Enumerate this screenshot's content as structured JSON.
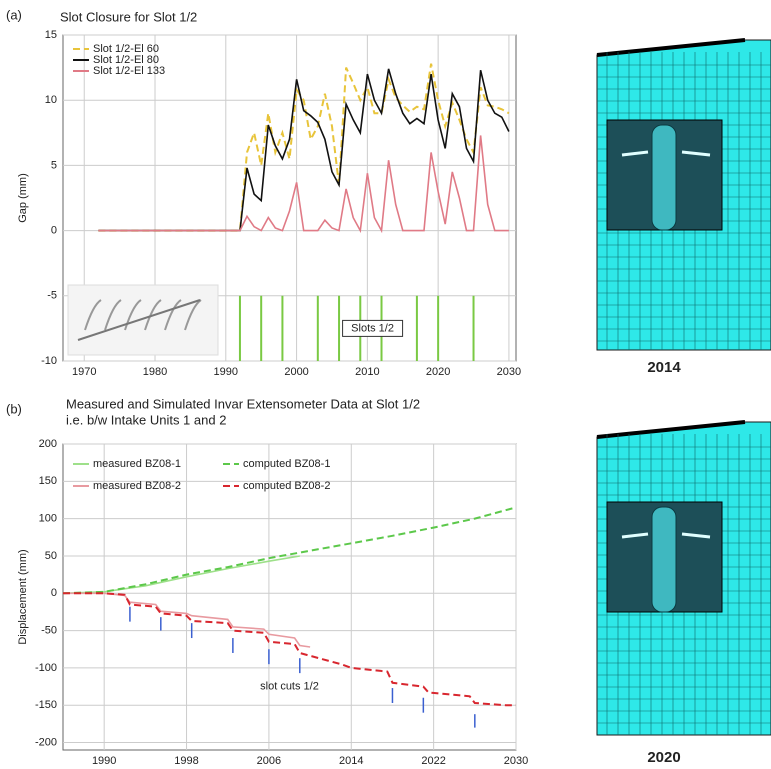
{
  "figure_labels": [
    "(a)",
    "(b)"
  ],
  "meshes": [
    {
      "label": "2014"
    },
    {
      "label": "2020"
    }
  ],
  "chart_data": [
    {
      "type": "line",
      "title": "Slot Closure for Slot 1/2",
      "y_label": "Gap (mm)",
      "x": [
        1972,
        1992,
        1993,
        1994,
        1995,
        1996,
        1997,
        1998,
        1999,
        2000,
        2001,
        2002,
        2003,
        2004,
        2005,
        2006,
        2007,
        2008,
        2009,
        2010,
        2011,
        2012,
        2013,
        2014,
        2015,
        2016,
        2017,
        2018,
        2019,
        2020,
        2021,
        2022,
        2023,
        2024,
        2025,
        2026,
        2027,
        2028,
        2029,
        2030
      ],
      "series": [
        {
          "name": "Slot 1/2-El 60",
          "color": "#e8c43a",
          "style": "dashed",
          "values": [
            0,
            0,
            6,
            7.5,
            5,
            9,
            6,
            7.5,
            5.5,
            10.8,
            10,
            7,
            8,
            10.5,
            8,
            3.5,
            12.5,
            11.3,
            10,
            11,
            9,
            9,
            11.6,
            10.2,
            9.6,
            9.1,
            9.5,
            9.3,
            12.8,
            10,
            8,
            9.8,
            8.5,
            7,
            6,
            11,
            9.6,
            9.5,
            9.3,
            9
          ]
        },
        {
          "name": "Slot 1/2-El 80",
          "color": "#111111",
          "style": "solid",
          "values": [
            0,
            0,
            4.8,
            2.8,
            2.3,
            8.1,
            6.5,
            5.5,
            7,
            11.6,
            9.2,
            8.8,
            8.3,
            7,
            4.5,
            3.5,
            9.7,
            8.5,
            7.5,
            12,
            10,
            9,
            12.4,
            10.5,
            9,
            8.2,
            8.6,
            8.2,
            12,
            8.5,
            6.3,
            10.5,
            9.5,
            6.3,
            5.3,
            12.3,
            10,
            9,
            8.7,
            7.6
          ]
        },
        {
          "name": "Slot 1/2-El 133",
          "color": "#e07a86",
          "style": "solid",
          "values": [
            0,
            0,
            1.1,
            0.3,
            0,
            1,
            0.2,
            0,
            1.5,
            3.7,
            0,
            0,
            0,
            0.8,
            0.2,
            0,
            3.2,
            1,
            0,
            4.4,
            1,
            0,
            5.4,
            2,
            0,
            0,
            0,
            0,
            6,
            3,
            0.5,
            4.5,
            2.5,
            0,
            0,
            7.3,
            2,
            0,
            0,
            0
          ]
        }
      ],
      "slot_cuts": {
        "x": [
          1992,
          1995,
          1998,
          2003,
          2006,
          2009,
          2012,
          2017,
          2020,
          2025
        ],
        "y_range": [
          -5,
          -10
        ],
        "color": "#7ac943",
        "label": "Slots 1/2"
      },
      "xlim": [
        1967,
        2031
      ],
      "xticks": [
        1970,
        1980,
        1990,
        2000,
        2010,
        2020,
        2030
      ],
      "ylim": [
        -10,
        15
      ],
      "yticks": [
        -10,
        -5,
        0,
        5,
        10,
        15
      ],
      "grid": true
    },
    {
      "type": "line",
      "title": "Measured and Simulated Invar Extensometer Data at Slot 1/2",
      "subtitle": "i.e. b/w Intake Units 1 and 2",
      "y_label": "Displacement (mm)",
      "series": [
        {
          "name": "measured BZ08-1",
          "color": "#9ee08a",
          "style": "solid",
          "x": [
            1986,
            1990,
            1994,
            1998,
            2002,
            2006,
            2009
          ],
          "values": [
            0,
            2,
            10,
            22,
            33,
            43,
            50
          ]
        },
        {
          "name": "computed BZ08-1",
          "color": "#5cc84a",
          "style": "dashed",
          "x": [
            1986,
            1990,
            1994,
            1998,
            2002,
            2006,
            2010,
            2014,
            2018,
            2022,
            2026,
            2030
          ],
          "values": [
            0,
            2,
            12,
            25,
            35,
            47,
            57,
            67,
            77,
            88,
            100,
            115
          ]
        },
        {
          "name": "measured BZ08-2",
          "color": "#e89aa0",
          "style": "solid",
          "x": [
            1986,
            1990,
            1992,
            1992.5,
            1995,
            1995.5,
            1998,
            1998.5,
            2002,
            2002.5,
            2005.5,
            2006,
            2008.5,
            2009,
            2010
          ],
          "values": [
            0,
            0,
            -3,
            -12,
            -15,
            -24,
            -27,
            -30,
            -35,
            -45,
            -48,
            -55,
            -60,
            -70,
            -72
          ]
        },
        {
          "name": "computed BZ08-2",
          "color": "#d8262e",
          "style": "dashed",
          "x": [
            1986,
            1990,
            1992,
            1992.5,
            1995,
            1995.5,
            1998,
            1998.5,
            2002,
            2002.5,
            2005.5,
            2006,
            2008.5,
            2009,
            2013,
            2014,
            2017.5,
            2018,
            2021,
            2021.5,
            2025.5,
            2026,
            2029,
            2030
          ],
          "values": [
            0,
            0,
            -2,
            -15,
            -18,
            -27,
            -30,
            -37,
            -40,
            -50,
            -53,
            -65,
            -68,
            -80,
            -95,
            -100,
            -105,
            -120,
            -125,
            -133,
            -138,
            -147,
            -150,
            -150
          ]
        }
      ],
      "slot_cut_marks": {
        "x": [
          1992.5,
          1995.5,
          1998.5,
          2002.5,
          2006,
          2009,
          2018,
          2021,
          2026
        ],
        "top": [
          -18,
          -32,
          -40,
          -60,
          -75,
          -87,
          -127,
          -140,
          -162
        ],
        "bottom": [
          -38,
          -50,
          -60,
          -80,
          -95,
          -107,
          -147,
          -160,
          -180
        ],
        "color": "#3a5fd0",
        "label": "slot cuts 1/2",
        "label_x": 2008,
        "label_y": -125
      },
      "xlim": [
        1986,
        2030
      ],
      "xticks": [
        1990,
        1998,
        2006,
        2014,
        2022,
        2030
      ],
      "ylim": [
        -210,
        200
      ],
      "yticks": [
        -200,
        -150,
        -100,
        -50,
        0,
        50,
        100,
        150,
        200
      ],
      "grid": true
    }
  ]
}
